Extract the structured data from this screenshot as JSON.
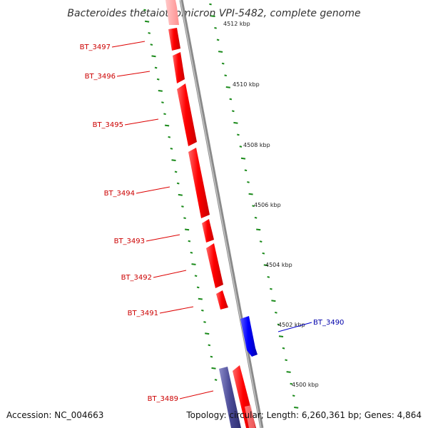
{
  "title": "Bacteroides thetaiotaomicron VPI-5482, complete genome",
  "footer": {
    "accession": "Accession: NC_004663",
    "topology": "Topology: circular; Length: 6,260,361 bp; Genes: 4,864"
  },
  "scale_ticks": [
    "4512 kbp",
    "4510 kbp",
    "4508 kbp",
    "4506 kbp",
    "4504 kbp",
    "4502 kbp",
    "4500 kbp"
  ],
  "genes_forward": [
    "BT_3497",
    "BT_3496",
    "BT_3495",
    "BT_3494",
    "BT_3493",
    "BT_3492",
    "BT_3491",
    "BT_3489"
  ],
  "genes_reverse": [
    "BT_3490"
  ],
  "colors": {
    "forward_gene": "#ff0000",
    "reverse_gene": "#0000ff",
    "backbone": "#888888",
    "gc_dots": "#1a8a1a",
    "forward_label": "#cc0000",
    "reverse_label": "#0000aa"
  }
}
